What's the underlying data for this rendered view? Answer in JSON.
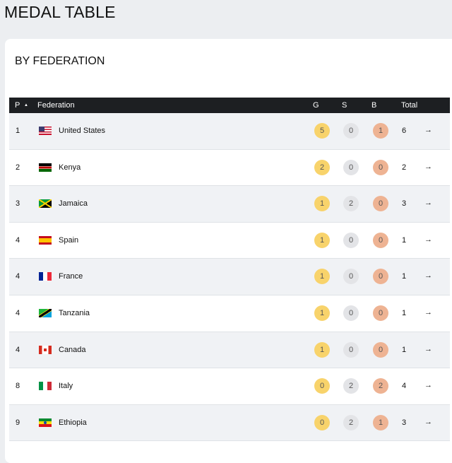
{
  "page_title": "MEDAL TABLE",
  "section_title": "BY FEDERATION",
  "columns": {
    "pos": "P",
    "sort_icon": "▲",
    "federation": "Federation",
    "gold": "G",
    "silver": "S",
    "bronze": "B",
    "total": "Total"
  },
  "colors": {
    "gold": "#f8d36b",
    "silver": "#e3e4e7",
    "bronze": "#eeb393",
    "header": "#1d1f22"
  },
  "rows": [
    {
      "pos": "1",
      "name": "United States",
      "flag": "us",
      "g": "5",
      "s": "0",
      "b": "1",
      "total": "6"
    },
    {
      "pos": "2",
      "name": "Kenya",
      "flag": "ke",
      "g": "2",
      "s": "0",
      "b": "0",
      "total": "2"
    },
    {
      "pos": "3",
      "name": "Jamaica",
      "flag": "jm",
      "g": "1",
      "s": "2",
      "b": "0",
      "total": "3"
    },
    {
      "pos": "4",
      "name": "Spain",
      "flag": "es",
      "g": "1",
      "s": "0",
      "b": "0",
      "total": "1"
    },
    {
      "pos": "4",
      "name": "France",
      "flag": "fr",
      "g": "1",
      "s": "0",
      "b": "0",
      "total": "1"
    },
    {
      "pos": "4",
      "name": "Tanzania",
      "flag": "tz",
      "g": "1",
      "s": "0",
      "b": "0",
      "total": "1"
    },
    {
      "pos": "4",
      "name": "Canada",
      "flag": "ca",
      "g": "1",
      "s": "0",
      "b": "0",
      "total": "1"
    },
    {
      "pos": "8",
      "name": "Italy",
      "flag": "it",
      "g": "0",
      "s": "2",
      "b": "2",
      "total": "4"
    },
    {
      "pos": "9",
      "name": "Ethiopia",
      "flag": "et",
      "g": "0",
      "s": "2",
      "b": "1",
      "total": "3"
    }
  ],
  "arrow_icon": "→"
}
